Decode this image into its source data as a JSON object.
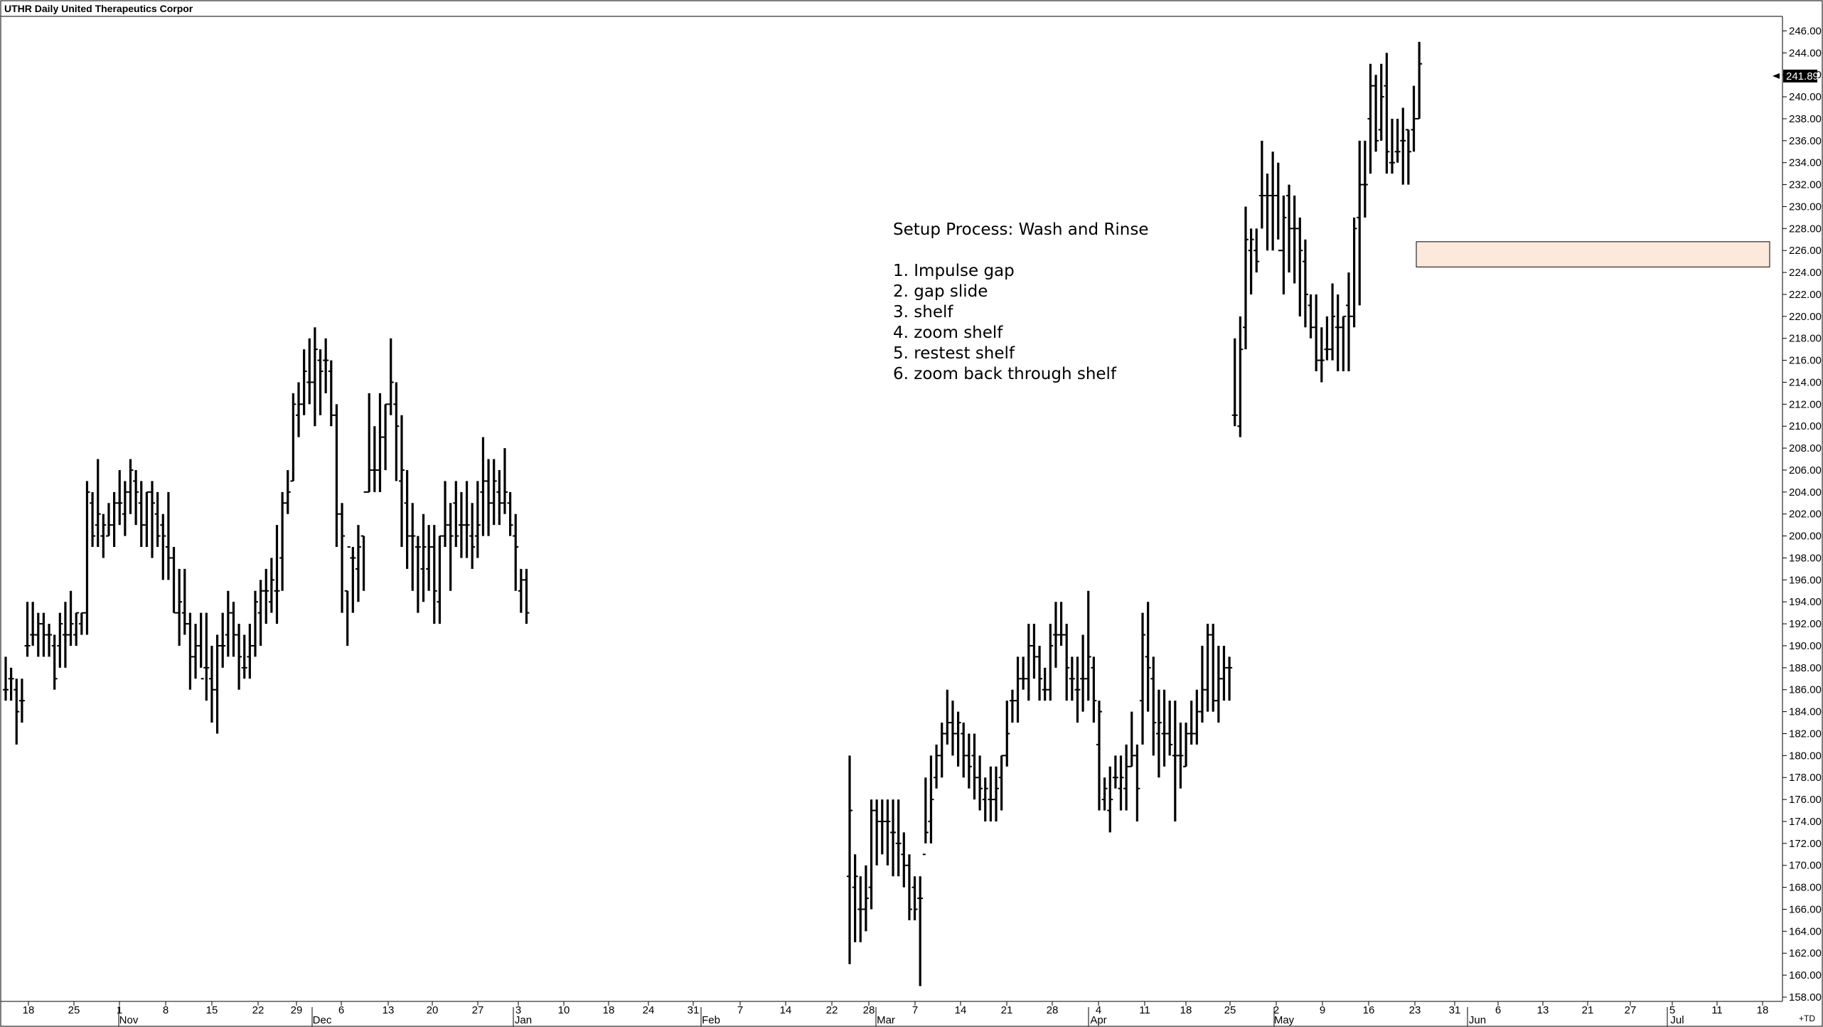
{
  "chart_data": {
    "type": "ohlc",
    "title": "UTHR Daily United Therapeutics Corpor",
    "last_price_label": "241.89",
    "corner_label": "+TD",
    "ylim": [
      158,
      247
    ],
    "y_ticks": [
      "158.00",
      "160.00",
      "162.00",
      "164.00",
      "166.00",
      "168.00",
      "170.00",
      "172.00",
      "174.00",
      "176.00",
      "178.00",
      "180.00",
      "182.00",
      "184.00",
      "186.00",
      "188.00",
      "190.00",
      "192.00",
      "194.00",
      "196.00",
      "198.00",
      "200.00",
      "202.00",
      "204.00",
      "206.00",
      "208.00",
      "210.00",
      "212.00",
      "214.00",
      "216.00",
      "218.00",
      "220.00",
      "222.00",
      "224.00",
      "226.00",
      "228.00",
      "230.00",
      "232.00",
      "234.00",
      "236.00",
      "238.00",
      "240.00",
      "242.00",
      "244.00",
      "246.00"
    ],
    "day_ticks": [
      "18",
      "25",
      "1",
      "8",
      "15",
      "22",
      "29",
      "6",
      "13",
      "20",
      "27",
      "3",
      "10",
      "18",
      "24",
      "31",
      "7",
      "14",
      "22",
      "28",
      "7",
      "14",
      "21",
      "28",
      "4",
      "11",
      "18",
      "25",
      "2",
      "9",
      "16",
      "23",
      "31",
      "6",
      "13",
      "21",
      "27",
      "5",
      "11",
      "18"
    ],
    "month_ticks": [
      "Nov",
      "Dec",
      "Jan",
      "Feb",
      "Mar",
      "Apr",
      "May",
      "Jun",
      "Jul"
    ],
    "shelf_zone": {
      "low": 224.5,
      "high": 226.8
    },
    "annotation": {
      "heading": "Setup Process: Wash and Rinse",
      "steps": [
        "1. Impulse gap",
        "2. gap slide",
        "3. shelf",
        "4. zoom shelf",
        "5. restest shelf",
        "6. zoom back through shelf"
      ]
    },
    "bars": [
      [
        186,
        189,
        185,
        186
      ],
      [
        187,
        188,
        185,
        187
      ],
      [
        186,
        187,
        181,
        184
      ],
      [
        185,
        187,
        183,
        185
      ],
      [
        190,
        194,
        189,
        190
      ],
      [
        191,
        194,
        190,
        191
      ],
      [
        191,
        193,
        189,
        192
      ],
      [
        192,
        193,
        189,
        191
      ],
      [
        191,
        192,
        189,
        191
      ],
      [
        190,
        191,
        186,
        187
      ],
      [
        190,
        193,
        188,
        192
      ],
      [
        191,
        194,
        188,
        191
      ],
      [
        191,
        195,
        190,
        192
      ],
      [
        191,
        193,
        190,
        193
      ],
      [
        192,
        193,
        191,
        193
      ],
      [
        193,
        205,
        191,
        204
      ],
      [
        203,
        204,
        199,
        200
      ],
      [
        201,
        207,
        199,
        202
      ],
      [
        200,
        202,
        198,
        201
      ],
      [
        200,
        203,
        200,
        201
      ],
      [
        201,
        204,
        199,
        203
      ],
      [
        203,
        206,
        201,
        203
      ],
      [
        202,
        205,
        200,
        204
      ],
      [
        204,
        207,
        202,
        206
      ],
      [
        205,
        206,
        201,
        204
      ],
      [
        203,
        205,
        199,
        201
      ],
      [
        201,
        204,
        199,
        204
      ],
      [
        204,
        205,
        198,
        203
      ],
      [
        202,
        204,
        199,
        200
      ],
      [
        201,
        202,
        196,
        200
      ],
      [
        199,
        204,
        196,
        198
      ],
      [
        198,
        199,
        193,
        193
      ],
      [
        193,
        197,
        190,
        194
      ],
      [
        193,
        197,
        191,
        192
      ],
      [
        192,
        193,
        186,
        189
      ],
      [
        189,
        192,
        187,
        190
      ],
      [
        190,
        193,
        188,
        187
      ],
      [
        188,
        193,
        185,
        188
      ],
      [
        187,
        190,
        183,
        186
      ],
      [
        186,
        191,
        182,
        190
      ],
      [
        190,
        193,
        188,
        190
      ],
      [
        191,
        195,
        189,
        193
      ],
      [
        193,
        194,
        189,
        191
      ],
      [
        191,
        192,
        186,
        189
      ],
      [
        188,
        191,
        187,
        188
      ],
      [
        189,
        192,
        187,
        190
      ],
      [
        190,
        195,
        189,
        194
      ],
      [
        193,
        196,
        190,
        195
      ],
      [
        195,
        197,
        192,
        195
      ],
      [
        194,
        198,
        193,
        196
      ],
      [
        195,
        201,
        192,
        195
      ],
      [
        198,
        204,
        195,
        203
      ],
      [
        203,
        206,
        202,
        204
      ],
      [
        205,
        213,
        205,
        212
      ],
      [
        211,
        214,
        209,
        212
      ],
      [
        212,
        217,
        211,
        215
      ],
      [
        214,
        218,
        212,
        214
      ],
      [
        214,
        219,
        210,
        217
      ],
      [
        216,
        217,
        211,
        215
      ],
      [
        216,
        218,
        213,
        216
      ],
      [
        215,
        216,
        210,
        211
      ],
      [
        211,
        212,
        199,
        202
      ],
      [
        202,
        203,
        193,
        200
      ],
      [
        195,
        195,
        190,
        199
      ],
      [
        198,
        199,
        193,
        198
      ],
      [
        197,
        201,
        194,
        199
      ],
      [
        200,
        200,
        195,
        204
      ],
      [
        204,
        213,
        204,
        206
      ],
      [
        206,
        210,
        204,
        206
      ],
      [
        206,
        213,
        204,
        209
      ],
      [
        209,
        212,
        206,
        212
      ],
      [
        212,
        218,
        211,
        214
      ],
      [
        212,
        214,
        205,
        210
      ],
      [
        205,
        211,
        199,
        206
      ],
      [
        203,
        206,
        197,
        200
      ],
      [
        200,
        203,
        195,
        200
      ],
      [
        199,
        200,
        193,
        199
      ],
      [
        197,
        202,
        194,
        199
      ],
      [
        197,
        201,
        195,
        199
      ],
      [
        199,
        201,
        192,
        195
      ],
      [
        194,
        200,
        192,
        200
      ],
      [
        200,
        205,
        199,
        201
      ],
      [
        201,
        203,
        195,
        200
      ],
      [
        203,
        205,
        199,
        200
      ],
      [
        201,
        204,
        198,
        201
      ],
      [
        201,
        205,
        198,
        201
      ],
      [
        200,
        203,
        197,
        199
      ],
      [
        200,
        205,
        198,
        201
      ],
      [
        204,
        209,
        200,
        205
      ],
      [
        205,
        207,
        200,
        203
      ],
      [
        203,
        207,
        201,
        205
      ],
      [
        204,
        206,
        201,
        203
      ],
      [
        203,
        208,
        202,
        204
      ],
      [
        203,
        204,
        200,
        201
      ],
      [
        200,
        202,
        195,
        199
      ],
      [
        195,
        197,
        193,
        196
      ],
      [
        196,
        197,
        192,
        193
      ],
      [
        169,
        180,
        161,
        175
      ],
      [
        168,
        171,
        163,
        169
      ],
      [
        166,
        169,
        163,
        166
      ],
      [
        166,
        170,
        164,
        167
      ],
      [
        168,
        176,
        166,
        175
      ],
      [
        175,
        176,
        170,
        174
      ],
      [
        174,
        176,
        171,
        174
      ],
      [
        174,
        176,
        170,
        174
      ],
      [
        173,
        176,
        169,
        173
      ],
      [
        172,
        176,
        169,
        172
      ],
      [
        171,
        173,
        168,
        170
      ],
      [
        170,
        171,
        165,
        166
      ],
      [
        168,
        169,
        165,
        166
      ],
      [
        167,
        169,
        159,
        167
      ],
      [
        171,
        178,
        172,
        173
      ],
      [
        174,
        180,
        172,
        176
      ],
      [
        178,
        181,
        177,
        180
      ],
      [
        180,
        183,
        178,
        182
      ],
      [
        182,
        186,
        181,
        183
      ],
      [
        183,
        185,
        180,
        182
      ],
      [
        182,
        184,
        179,
        183
      ],
      [
        182,
        183,
        178,
        180
      ],
      [
        180,
        182,
        177,
        179
      ],
      [
        180,
        182,
        176,
        178
      ],
      [
        178,
        180,
        175,
        177
      ],
      [
        176,
        178,
        174,
        177
      ],
      [
        176,
        179,
        174,
        176
      ],
      [
        176,
        179,
        174,
        177
      ],
      [
        178,
        180,
        175,
        180
      ],
      [
        180,
        185,
        179,
        182
      ],
      [
        185,
        186,
        183,
        185
      ],
      [
        185,
        189,
        183,
        187
      ],
      [
        187,
        189,
        186,
        187
      ],
      [
        187,
        192,
        185,
        190
      ],
      [
        190,
        192,
        187,
        189
      ],
      [
        189,
        190,
        185,
        187
      ],
      [
        186,
        188,
        185,
        186
      ],
      [
        186,
        192,
        185,
        190
      ],
      [
        191,
        194,
        188,
        191
      ],
      [
        191,
        194,
        190,
        191
      ],
      [
        191,
        192,
        185,
        188
      ],
      [
        187,
        189,
        185,
        187
      ],
      [
        186,
        189,
        183,
        186
      ],
      [
        187,
        191,
        184,
        187
      ],
      [
        187,
        195,
        185,
        189
      ],
      [
        188,
        189,
        183,
        185
      ],
      [
        181,
        185,
        175,
        184
      ],
      [
        176,
        178,
        175,
        177
      ],
      [
        175,
        179,
        173,
        176
      ],
      [
        178,
        180,
        177,
        178
      ],
      [
        177,
        180,
        175,
        178
      ],
      [
        177,
        181,
        175,
        179
      ],
      [
        179,
        184,
        179,
        180
      ],
      [
        180,
        181,
        174,
        177
      ],
      [
        185,
        193,
        181,
        191
      ],
      [
        189,
        194,
        184,
        188
      ],
      [
        187,
        189,
        180,
        183
      ],
      [
        182,
        186,
        178,
        183
      ],
      [
        182,
        186,
        179,
        182
      ],
      [
        182,
        185,
        180,
        181
      ],
      [
        180,
        185,
        174,
        180
      ],
      [
        180,
        183,
        177,
        180
      ],
      [
        179,
        183,
        179,
        182
      ],
      [
        182,
        185,
        181,
        182
      ],
      [
        182,
        186,
        181,
        184
      ],
      [
        184,
        190,
        183,
        186
      ],
      [
        186,
        192,
        184,
        191
      ],
      [
        191,
        192,
        184,
        185
      ],
      [
        185,
        190,
        183,
        187
      ],
      [
        187,
        190,
        185,
        188
      ],
      [
        188,
        189,
        185,
        188
      ],
      [
        211,
        218,
        210,
        211
      ],
      [
        210,
        220,
        209,
        217
      ],
      [
        219,
        230,
        217,
        227
      ],
      [
        226,
        228,
        222,
        227
      ],
      [
        226,
        228,
        224,
        225
      ],
      [
        231,
        236,
        228,
        231
      ],
      [
        231,
        233,
        226,
        231
      ],
      [
        231,
        235,
        226,
        231
      ],
      [
        231,
        234,
        227,
        226
      ],
      [
        226,
        231,
        222,
        229
      ],
      [
        231,
        232,
        224,
        228
      ],
      [
        228,
        231,
        223,
        228
      ],
      [
        228,
        229,
        220,
        226
      ],
      [
        225,
        227,
        219,
        222
      ],
      [
        221,
        222,
        218,
        219
      ],
      [
        219,
        222,
        215,
        216
      ],
      [
        216,
        219,
        214,
        216
      ],
      [
        217,
        220,
        216,
        217
      ],
      [
        217,
        223,
        216,
        220
      ],
      [
        219,
        222,
        215,
        219
      ],
      [
        219,
        220,
        215,
        220
      ],
      [
        221,
        224,
        215,
        220
      ],
      [
        220,
        229,
        219,
        228
      ],
      [
        229,
        236,
        221,
        232
      ],
      [
        232,
        236,
        229,
        232
      ],
      [
        238,
        243,
        233,
        241
      ],
      [
        241,
        242,
        235,
        236
      ],
      [
        237,
        243,
        236,
        240
      ],
      [
        241,
        244,
        233,
        235
      ],
      [
        234,
        238,
        233,
        234
      ],
      [
        235,
        238,
        234,
        235
      ],
      [
        236,
        239,
        232,
        236
      ],
      [
        237,
        237,
        232,
        235
      ],
      [
        237,
        241,
        235,
        238
      ],
      [
        238,
        245,
        238,
        243
      ]
    ]
  }
}
